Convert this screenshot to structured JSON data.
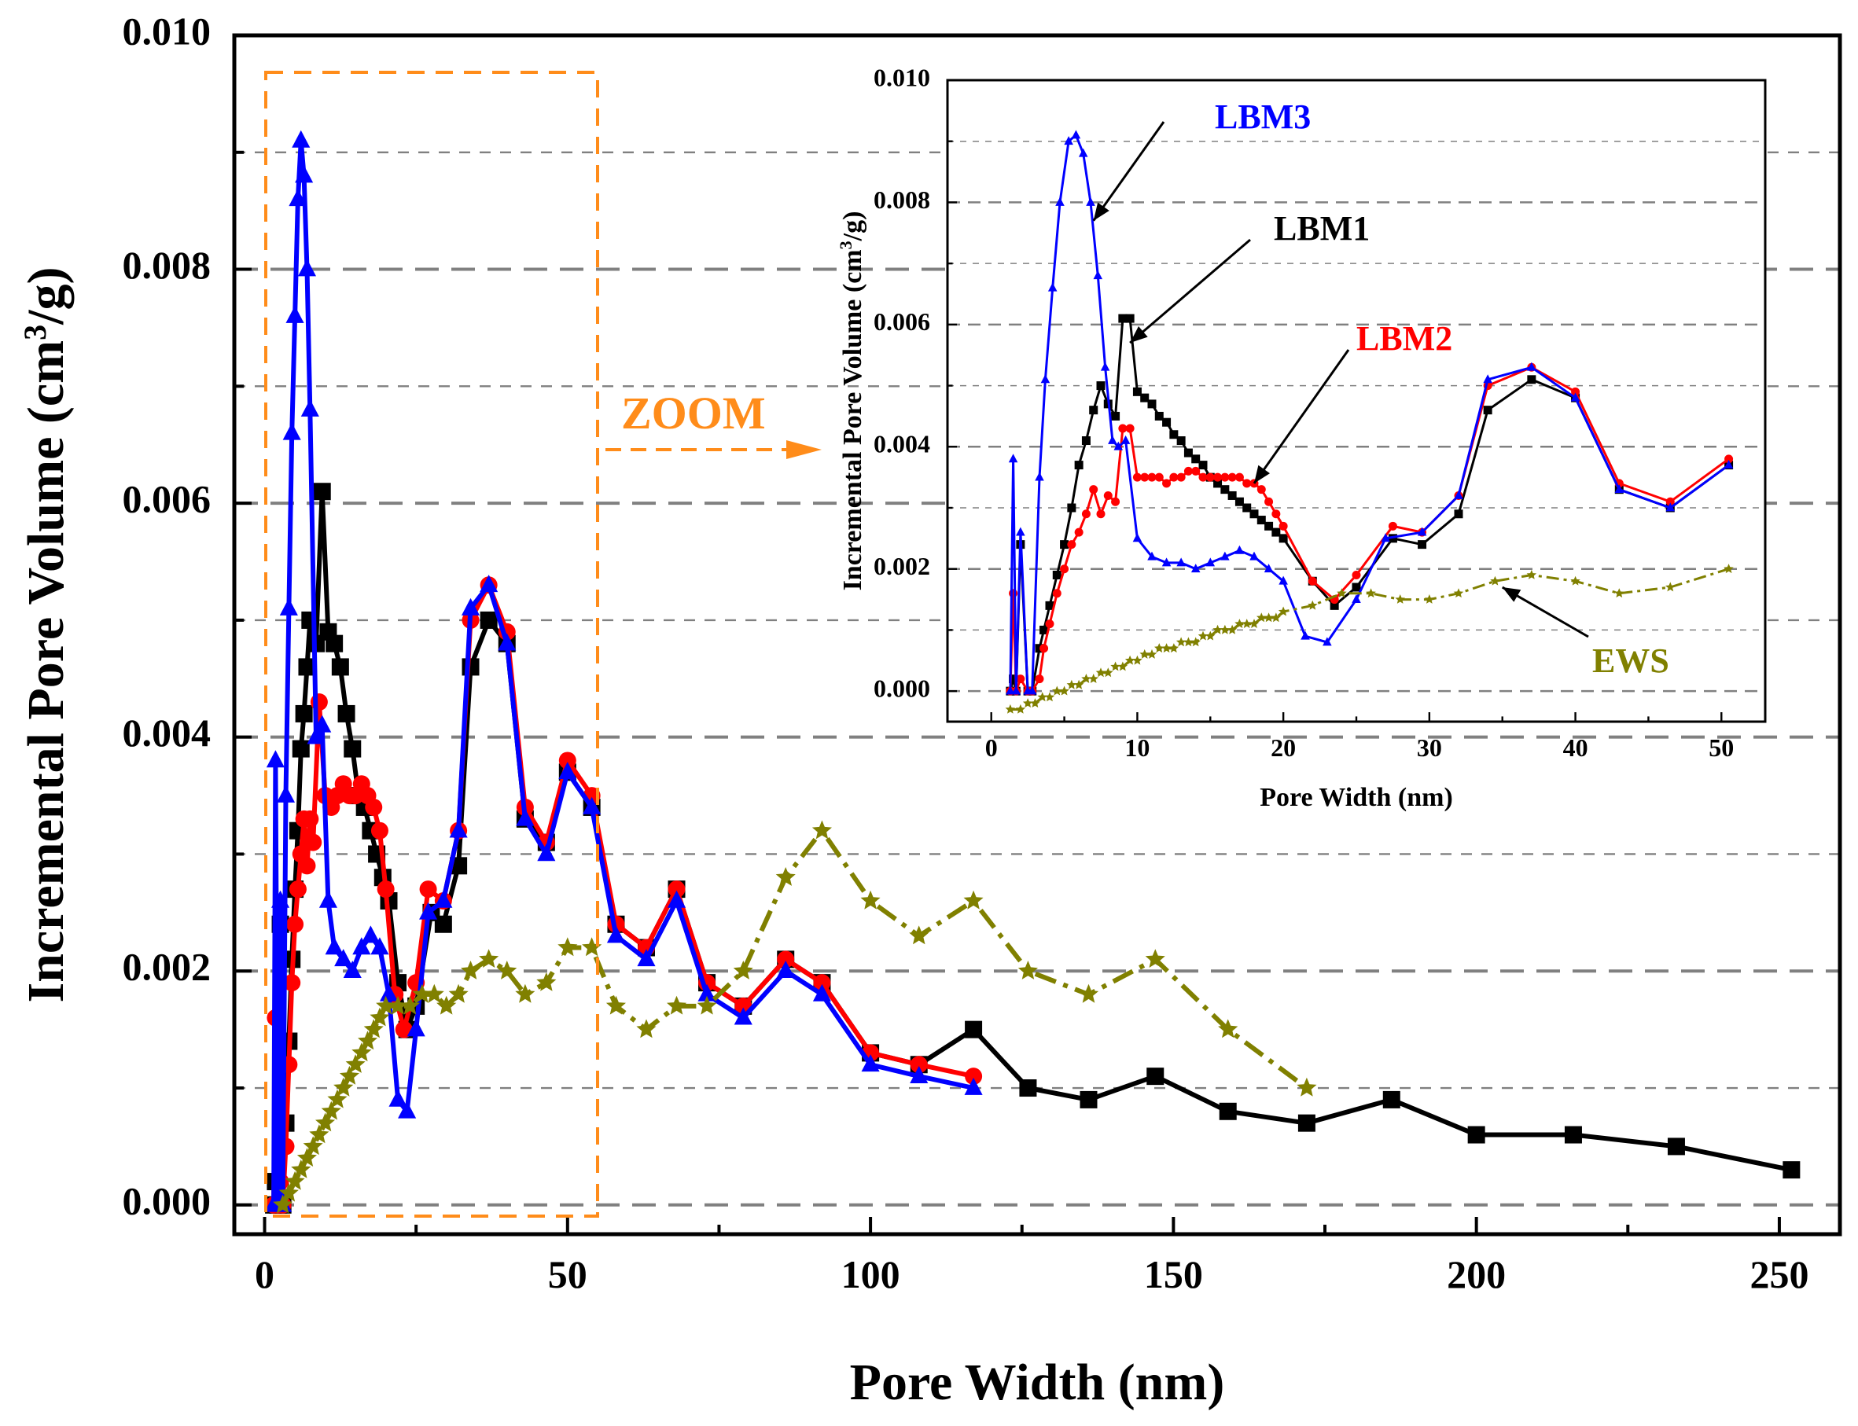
{
  "colors": {
    "LBM1": "#000000",
    "LBM2": "#ff0000",
    "LBM3": "#0000ff",
    "EWS": "#808000",
    "zoom": "#ff8c1a",
    "grid": "#808080"
  },
  "zoom_label": "ZOOM",
  "chart_data": [
    {
      "id": "main",
      "type": "line",
      "xlabel": "Pore Width (nm)",
      "ylabel": "Incremental Pore Volume (cm³/g)",
      "ylabel_parts": [
        "Incremental Pore Volume (cm",
        "3",
        "/g)"
      ],
      "xlim": [
        -5,
        260
      ],
      "ylim": [
        -0.00025,
        0.01
      ],
      "xticks": [
        0,
        50,
        100,
        150,
        200,
        250
      ],
      "xtick_labels": [
        "0",
        "50",
        "100",
        "150",
        "200",
        "250"
      ],
      "yticks": [
        0.0,
        0.002,
        0.004,
        0.006,
        0.008,
        0.01
      ],
      "ytick_labels": [
        "0.000",
        "0.002",
        "0.004",
        "0.006",
        "0.008",
        "0.010"
      ],
      "grid": "dashed horizontal",
      "series": [
        {
          "name": "LBM1",
          "marker": "square",
          "x": [
            1.5,
            1.8,
            2.2,
            2.6,
            3.0,
            3.5,
            4.0,
            4.5,
            5.0,
            5.5,
            6.0,
            6.5,
            7.0,
            7.5,
            8.5,
            9.5,
            10.5,
            11.5,
            12.5,
            13.5,
            14.5,
            15.5,
            16.5,
            17.5,
            18.5,
            19.5,
            20.5,
            22.0,
            23.5,
            25.0,
            27.5,
            29.5,
            32.0,
            34.0,
            37.0,
            40.0,
            43.0,
            46.5,
            50.0,
            54.0,
            58.0,
            63.0,
            68.0,
            73.0,
            79.0,
            86.0,
            92.0,
            100.0,
            108.0,
            117.0,
            126.0,
            136.0,
            147.0,
            159.0,
            172.0,
            186.0,
            200.0,
            216.0,
            233.0,
            252.0
          ],
          "y": [
            0.0,
            0.0002,
            0.0,
            0.0024,
            0.0,
            0.0007,
            0.0014,
            0.0021,
            0.0027,
            0.0032,
            0.0039,
            0.0042,
            0.0046,
            0.005,
            0.0048,
            0.0061,
            0.0049,
            0.0048,
            0.0046,
            0.0042,
            0.0039,
            0.0035,
            0.0034,
            0.0032,
            0.003,
            0.0028,
            0.0026,
            0.0019,
            0.0015,
            0.0017,
            0.0025,
            0.0024,
            0.0029,
            0.0046,
            0.005,
            0.0048,
            0.0033,
            0.0031,
            0.0037,
            0.0034,
            0.0024,
            0.0022,
            0.0027,
            0.0019,
            0.0017,
            0.0021,
            0.0019,
            0.0013,
            0.0012,
            0.0015,
            0.001,
            0.0009,
            0.0011,
            0.0008,
            0.0007,
            0.0009,
            0.0006,
            0.0006,
            0.0005,
            0.0003
          ]
        },
        {
          "name": "LBM2",
          "marker": "circle",
          "x": [
            1.5,
            1.8,
            2.2,
            2.6,
            3.0,
            3.5,
            4.0,
            4.5,
            5.0,
            5.5,
            6.0,
            6.5,
            7.0,
            7.5,
            8.0,
            9.0,
            10.0,
            11.0,
            12.0,
            13.0,
            14.0,
            15.0,
            16.0,
            17.0,
            18.0,
            19.0,
            20.0,
            21.5,
            23.0,
            25.0,
            27.0,
            29.5,
            32.0,
            34.0,
            37.0,
            40.0,
            43.0,
            46.5,
            50.0,
            54.0,
            58.0,
            63.0,
            68.0,
            73.0,
            79.0,
            86.0,
            92.0,
            100.0,
            108.0,
            117.0
          ],
          "y": [
            0.0,
            0.0016,
            0.0,
            0.0002,
            0.0,
            0.0005,
            0.0012,
            0.0019,
            0.0024,
            0.0027,
            0.003,
            0.0033,
            0.0029,
            0.0033,
            0.0031,
            0.0043,
            0.0035,
            0.0034,
            0.0035,
            0.0036,
            0.0035,
            0.0035,
            0.0036,
            0.0035,
            0.0034,
            0.0032,
            0.0027,
            0.0018,
            0.0015,
            0.0019,
            0.0027,
            0.0026,
            0.0032,
            0.005,
            0.0053,
            0.0049,
            0.0034,
            0.0031,
            0.0038,
            0.0035,
            0.0024,
            0.0022,
            0.0027,
            0.0019,
            0.0017,
            0.0021,
            0.0019,
            0.0013,
            0.0012,
            0.0011
          ]
        },
        {
          "name": "LBM3",
          "marker": "triangle",
          "x": [
            1.5,
            1.8,
            2.2,
            2.6,
            3.0,
            3.5,
            4.0,
            4.5,
            5.0,
            5.5,
            6.0,
            6.5,
            7.0,
            7.5,
            8.5,
            9.5,
            10.5,
            11.5,
            13.0,
            14.5,
            16.0,
            17.5,
            19.0,
            20.5,
            22.0,
            23.5,
            25.0,
            27.0,
            29.5,
            32.0,
            34.0,
            37.0,
            40.0,
            43.0,
            46.5,
            50.0,
            54.0,
            58.0,
            63.0,
            68.0,
            73.0,
            79.0,
            86.0,
            92.0,
            100.0,
            108.0,
            117.0
          ],
          "y": [
            0.0,
            0.0038,
            0.0,
            0.0026,
            0.0,
            0.0035,
            0.0051,
            0.0066,
            0.0076,
            0.0086,
            0.0091,
            0.0088,
            0.008,
            0.0068,
            0.004,
            0.0041,
            0.0026,
            0.0022,
            0.0021,
            0.002,
            0.0022,
            0.0023,
            0.0022,
            0.0018,
            0.0009,
            0.0008,
            0.0015,
            0.0025,
            0.0026,
            0.0032,
            0.0051,
            0.0053,
            0.0048,
            0.0033,
            0.003,
            0.0037,
            0.0034,
            0.0023,
            0.0021,
            0.0026,
            0.0018,
            0.0016,
            0.002,
            0.0018,
            0.0012,
            0.0011,
            0.001
          ]
        },
        {
          "name": "EWS",
          "marker": "star",
          "x": [
            3,
            4,
            5,
            6,
            7,
            8,
            9,
            10,
            11,
            12,
            13,
            14,
            15,
            16,
            17,
            18,
            19,
            20,
            22,
            24,
            26,
            28,
            30,
            32,
            34,
            37,
            40,
            43,
            46.5,
            50,
            54,
            58,
            63,
            68,
            73,
            79,
            86,
            92,
            100,
            108,
            117,
            126,
            136,
            147,
            159,
            172
          ],
          "y": [
            0.0,
            0.0001,
            0.0002,
            0.0003,
            0.0004,
            0.0005,
            0.0006,
            0.0007,
            0.0008,
            0.0009,
            0.001,
            0.0011,
            0.0012,
            0.0013,
            0.0014,
            0.0015,
            0.0016,
            0.0017,
            0.0017,
            0.0017,
            0.0018,
            0.0018,
            0.0017,
            0.0018,
            0.002,
            0.0021,
            0.002,
            0.0018,
            0.0019,
            0.0022,
            0.0022,
            0.0017,
            0.0015,
            0.0017,
            0.0017,
            0.002,
            0.0028,
            0.0032,
            0.0026,
            0.0023,
            0.0026,
            0.002,
            0.0018,
            0.0021,
            0.0015,
            0.001
          ]
        }
      ]
    },
    {
      "id": "inset",
      "type": "line",
      "xlabel": "Pore Width (nm)",
      "ylabel": "Incremental Pore Volume (cm³/g)",
      "ylabel_parts": [
        "Incremental Pore Volume (cm",
        "3",
        "/g)"
      ],
      "xlim": [
        -3,
        53
      ],
      "ylim": [
        -0.0005,
        0.01
      ],
      "xticks": [
        0,
        10,
        20,
        30,
        40,
        50
      ],
      "xtick_labels": [
        "0",
        "10",
        "20",
        "30",
        "40",
        "50"
      ],
      "yticks": [
        0.0,
        0.002,
        0.004,
        0.006,
        0.008,
        0.01
      ],
      "ytick_labels": [
        "0.000",
        "0.002",
        "0.004",
        "0.006",
        "0.008",
        "0.010"
      ],
      "grid": "dashed horizontal",
      "legend": [
        {
          "series": "LBM3",
          "label": "LBM3",
          "arrow_to": [
            7.0,
            0.0077
          ]
        },
        {
          "series": "LBM1",
          "label": "LBM1",
          "arrow_to": [
            9.5,
            0.0057
          ]
        },
        {
          "series": "LBM2",
          "label": "LBM2",
          "arrow_to": [
            18.0,
            0.0034
          ]
        },
        {
          "series": "EWS",
          "label": "EWS",
          "arrow_to": [
            35.0,
            0.0017
          ]
        }
      ],
      "series": [
        {
          "name": "LBM1",
          "marker": "square",
          "x": [
            1.3,
            1.5,
            1.7,
            2.0,
            2.5,
            2.8,
            3.3,
            3.6,
            4.0,
            4.5,
            5.0,
            5.5,
            6.0,
            6.5,
            7.0,
            7.5,
            8.0,
            8.5,
            9.0,
            9.5,
            10.0,
            10.5,
            11.0,
            11.5,
            12.0,
            12.5,
            13.0,
            13.5,
            14.0,
            14.5,
            15.0,
            15.5,
            16.0,
            16.5,
            17.0,
            17.5,
            18.0,
            18.5,
            19.0,
            19.5,
            20.0,
            22.0,
            23.5,
            25.0,
            27.5,
            29.5,
            32.0,
            34.0,
            37.0,
            40.0,
            43.0,
            46.5,
            50.5
          ],
          "y": [
            0.0,
            0.0002,
            0.0,
            0.0024,
            0.0,
            0.0,
            0.0007,
            0.001,
            0.0014,
            0.0019,
            0.0024,
            0.003,
            0.0037,
            0.0041,
            0.0046,
            0.005,
            0.0047,
            0.0045,
            0.0061,
            0.0061,
            0.0049,
            0.0048,
            0.0047,
            0.0045,
            0.0044,
            0.0042,
            0.0041,
            0.0039,
            0.0038,
            0.0037,
            0.0035,
            0.0034,
            0.0033,
            0.0032,
            0.0031,
            0.003,
            0.0029,
            0.0028,
            0.0027,
            0.0026,
            0.0025,
            0.0018,
            0.0014,
            0.0017,
            0.0025,
            0.0024,
            0.0029,
            0.0046,
            0.0051,
            0.0048,
            0.0033,
            0.003,
            0.0037
          ]
        },
        {
          "name": "LBM2",
          "marker": "circle",
          "x": [
            1.3,
            1.5,
            1.7,
            2.0,
            2.5,
            2.8,
            3.3,
            3.6,
            4.0,
            4.5,
            5.0,
            5.5,
            6.0,
            6.5,
            7.0,
            7.5,
            8.0,
            8.5,
            9.0,
            9.5,
            10.0,
            10.5,
            11.0,
            11.5,
            12.0,
            12.5,
            13.0,
            13.5,
            14.0,
            14.5,
            15.0,
            15.5,
            16.0,
            16.5,
            17.0,
            17.5,
            18.0,
            18.5,
            19.0,
            19.5,
            20.0,
            22.0,
            23.5,
            25.0,
            27.5,
            29.5,
            32.0,
            34.0,
            37.0,
            40.0,
            43.0,
            46.5,
            50.5
          ],
          "y": [
            0.0,
            0.0016,
            0.0,
            0.0002,
            0.0,
            0.0,
            0.0002,
            0.0007,
            0.0011,
            0.0016,
            0.002,
            0.0024,
            0.0026,
            0.0029,
            0.0033,
            0.0029,
            0.0032,
            0.0031,
            0.0043,
            0.0043,
            0.0035,
            0.0035,
            0.0035,
            0.0035,
            0.0034,
            0.0035,
            0.0035,
            0.0036,
            0.0036,
            0.0035,
            0.0035,
            0.0035,
            0.0035,
            0.0035,
            0.0035,
            0.0034,
            0.0034,
            0.0033,
            0.0031,
            0.0029,
            0.0027,
            0.0018,
            0.0015,
            0.0019,
            0.0027,
            0.0026,
            0.0032,
            0.005,
            0.0053,
            0.0049,
            0.0034,
            0.0031,
            0.0038
          ]
        },
        {
          "name": "LBM3",
          "marker": "triangle",
          "x": [
            1.3,
            1.5,
            1.7,
            2.0,
            2.5,
            2.8,
            3.3,
            3.7,
            4.2,
            4.7,
            5.3,
            5.8,
            6.3,
            6.8,
            7.3,
            7.8,
            8.3,
            8.7,
            9.2,
            10.0,
            11.0,
            12.0,
            13.0,
            14.0,
            15.0,
            16.0,
            17.0,
            18.0,
            19.0,
            20.0,
            21.5,
            23.0,
            25.0,
            27.0,
            29.5,
            32.0,
            34.0,
            37.0,
            40.0,
            43.0,
            46.5,
            50.5
          ],
          "y": [
            0.0,
            0.0038,
            0.0,
            0.0026,
            0.0,
            0.0,
            0.0035,
            0.0051,
            0.0066,
            0.008,
            0.009,
            0.0091,
            0.0088,
            0.008,
            0.0068,
            0.0053,
            0.0041,
            0.004,
            0.0041,
            0.0025,
            0.0022,
            0.0021,
            0.0021,
            0.002,
            0.0021,
            0.0022,
            0.0023,
            0.0022,
            0.002,
            0.0018,
            0.0009,
            0.0008,
            0.0015,
            0.0025,
            0.0026,
            0.0032,
            0.0051,
            0.0053,
            0.0048,
            0.0033,
            0.003,
            0.0037
          ]
        },
        {
          "name": "EWS",
          "marker": "star",
          "x": [
            1.3,
            2.0,
            2.5,
            3.0,
            3.5,
            4.0,
            4.5,
            5.0,
            5.5,
            6.0,
            6.5,
            7.0,
            7.5,
            8.0,
            8.5,
            9.0,
            9.5,
            10.0,
            10.5,
            11.0,
            11.5,
            12.0,
            12.5,
            13.0,
            13.5,
            14.0,
            14.5,
            15.0,
            15.5,
            16.0,
            16.5,
            17.0,
            17.5,
            18.0,
            18.5,
            19.0,
            19.5,
            20.0,
            22.0,
            24.0,
            26.0,
            28.0,
            30.0,
            32.0,
            34.5,
            37.0,
            40.0,
            43.0,
            46.5,
            50.5
          ],
          "y": [
            -0.0003,
            -0.0003,
            -0.0002,
            -0.0002,
            -0.0001,
            -0.0001,
            0.0,
            0.0,
            0.0001,
            0.0001,
            0.0002,
            0.0002,
            0.0003,
            0.0003,
            0.0004,
            0.0004,
            0.0005,
            0.0005,
            0.0006,
            0.0006,
            0.0007,
            0.0007,
            0.0007,
            0.0008,
            0.0008,
            0.0008,
            0.0009,
            0.0009,
            0.001,
            0.001,
            0.001,
            0.0011,
            0.0011,
            0.0011,
            0.0012,
            0.0012,
            0.0012,
            0.0013,
            0.0014,
            0.0016,
            0.0016,
            0.0015,
            0.0015,
            0.0016,
            0.0018,
            0.0019,
            0.0018,
            0.0016,
            0.0017,
            0.002
          ]
        }
      ]
    }
  ]
}
